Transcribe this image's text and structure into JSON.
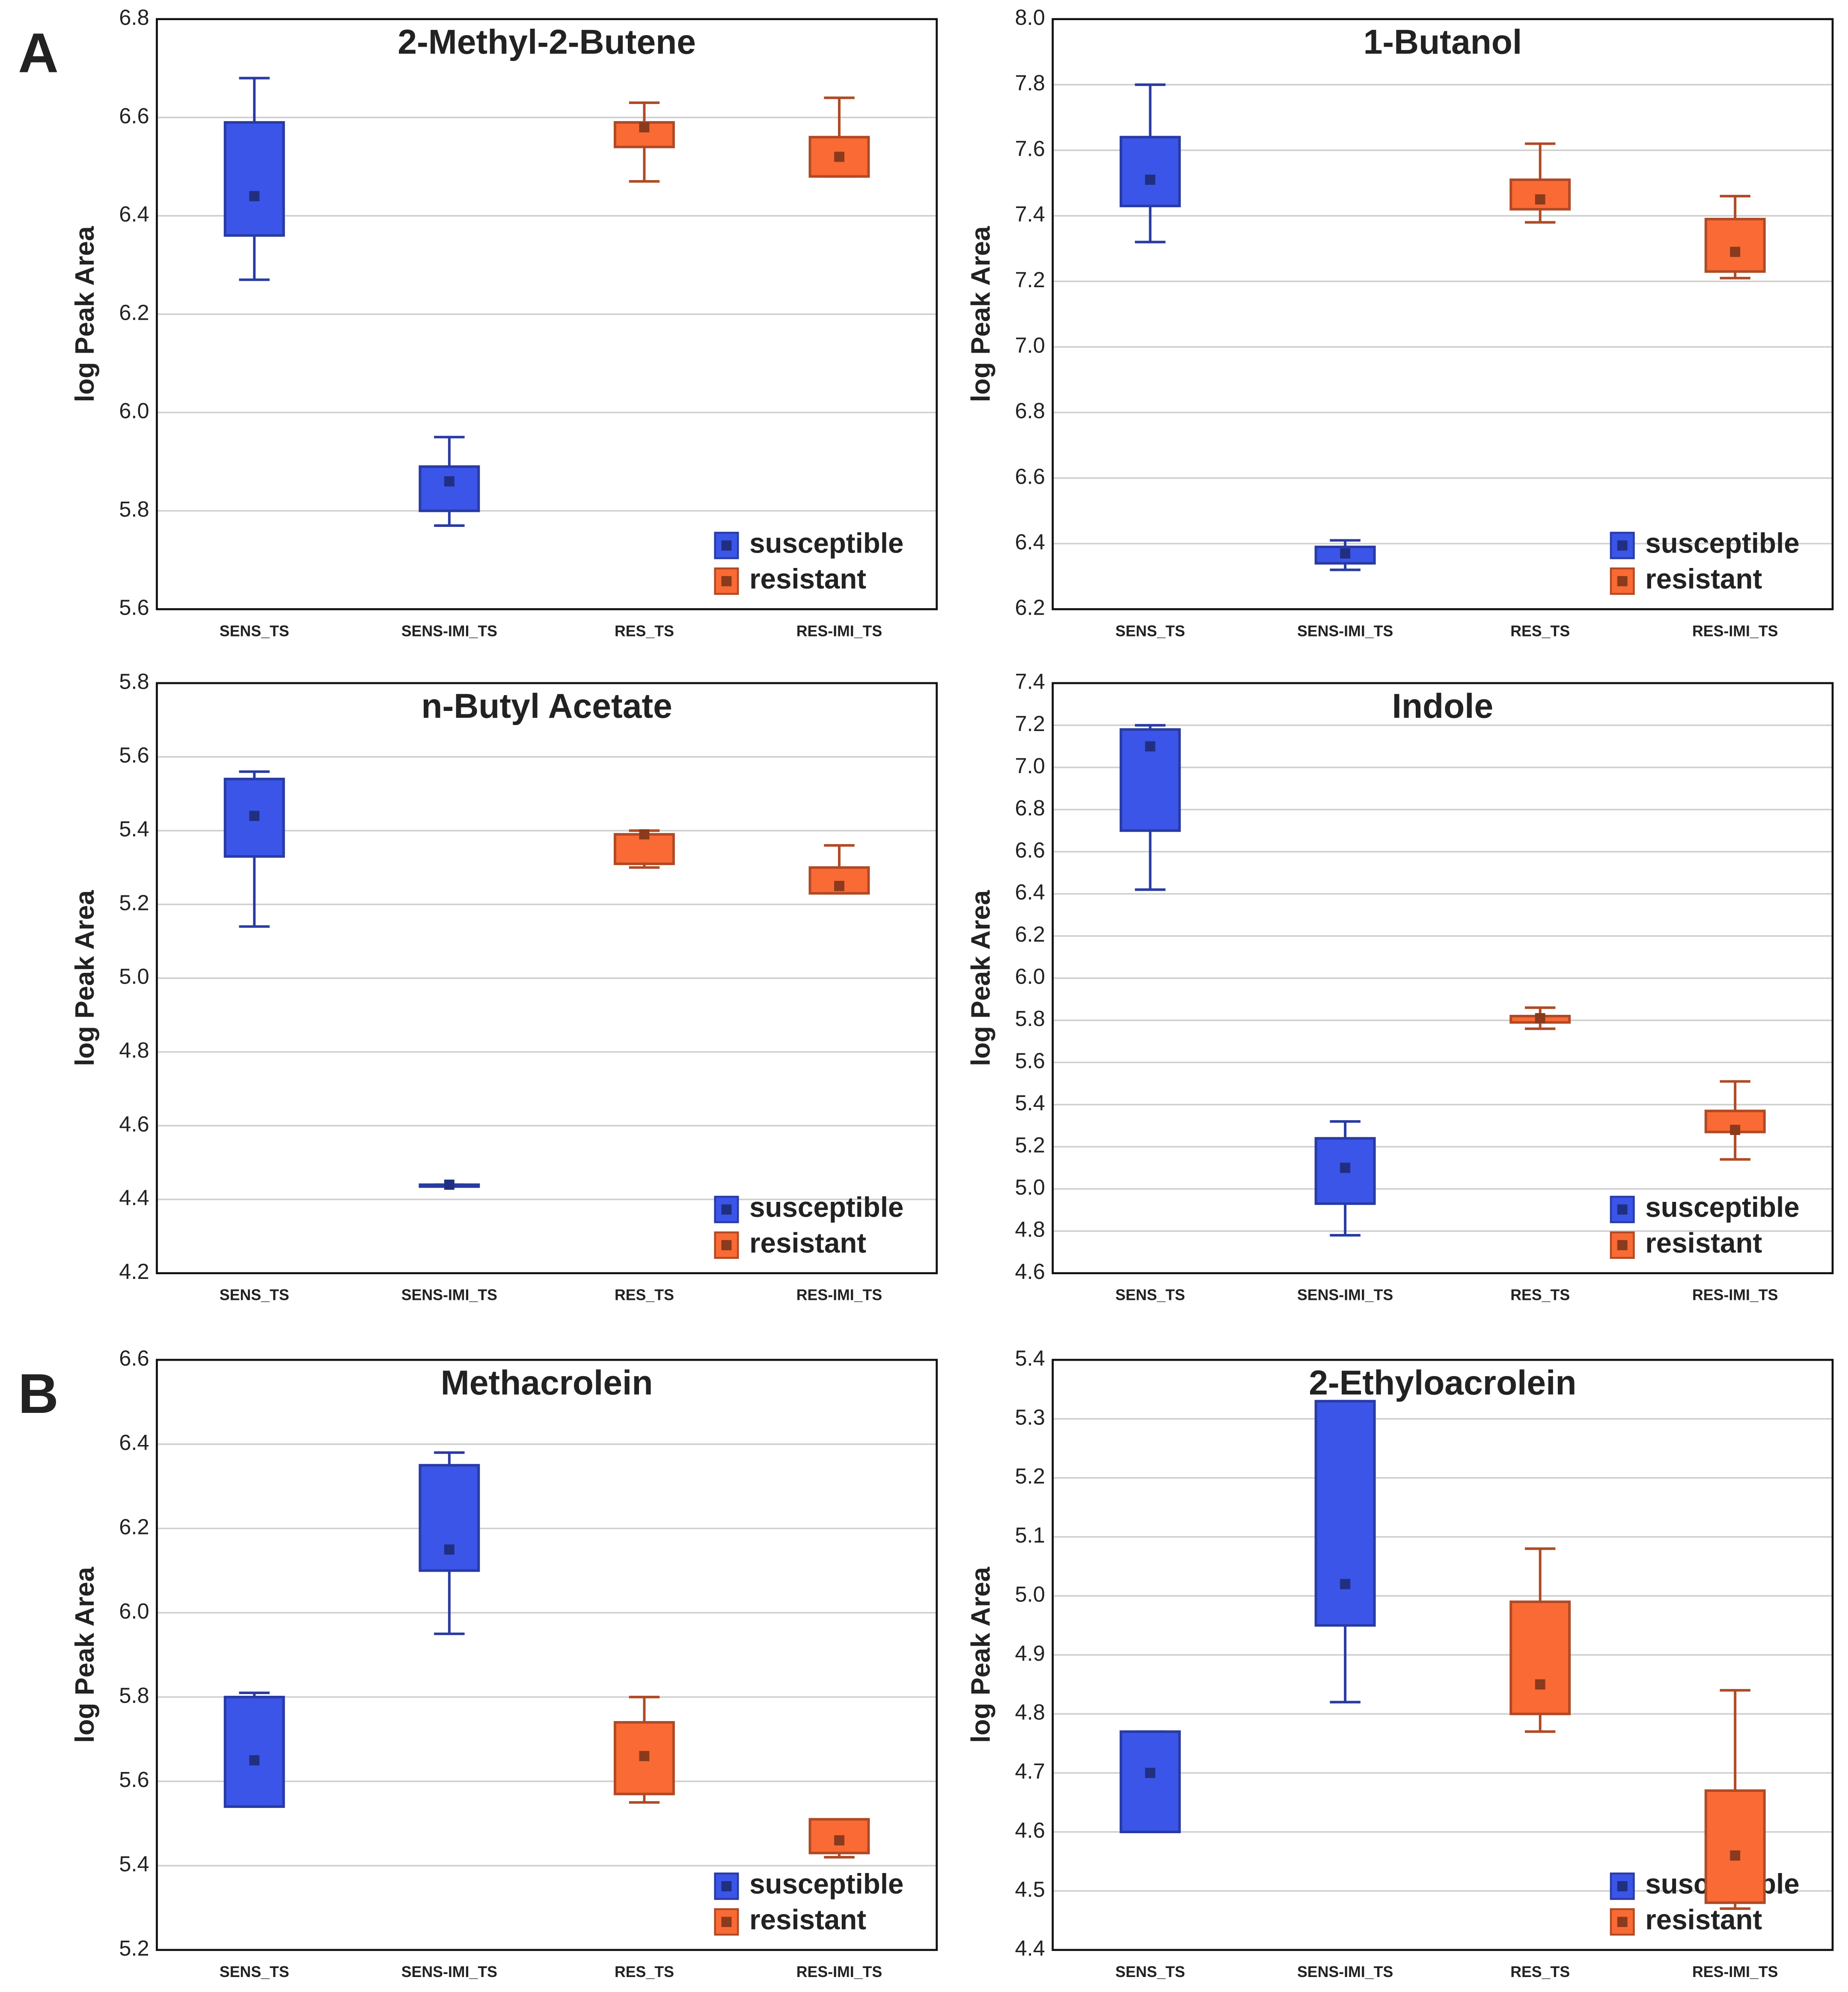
{
  "panel_labels": [
    "A",
    "B"
  ],
  "chart_data": [
    {
      "type": "box",
      "title": "2-Methyl-2-Butene",
      "ylabel": "log Peak Area",
      "categories": [
        "SENS_TS",
        "SENS-IMI_TS",
        "RES_TS",
        "RES-IMI_TS"
      ],
      "series": [
        {
          "name": "susceptible",
          "color": "#3a55e8",
          "min": [
            6.27,
            5.77,
            null,
            null
          ],
          "q1": [
            6.36,
            5.8,
            null,
            null
          ],
          "center": [
            6.44,
            5.86,
            null,
            null
          ],
          "q3": [
            6.59,
            5.89,
            null,
            null
          ],
          "max": [
            6.68,
            5.95,
            null,
            null
          ]
        },
        {
          "name": "resistant",
          "color": "#fa6a35",
          "min": [
            null,
            null,
            6.47,
            6.48
          ],
          "q1": [
            null,
            null,
            6.54,
            6.48
          ],
          "center": [
            null,
            null,
            6.58,
            6.52
          ],
          "q3": [
            null,
            null,
            6.59,
            6.56
          ],
          "max": [
            null,
            null,
            6.63,
            6.64
          ]
        }
      ],
      "ylim": [
        5.6,
        6.8
      ],
      "yticks": [
        5.6,
        5.8,
        {
          "value": 6,
          "label": "6.0"
        },
        6.2,
        6.4,
        6.6,
        6.8
      ],
      "grid": true,
      "legend": "lower right"
    },
    {
      "type": "box",
      "title": "1-Butanol",
      "ylabel": "log Peak Area",
      "categories": [
        "SENS_TS",
        "SENS-IMI_TS",
        "RES_TS",
        "RES-IMI_TS"
      ],
      "series": [
        {
          "name": "susceptible",
          "color": "#3a55e8",
          "min": [
            7.32,
            6.32,
            null,
            null
          ],
          "q1": [
            7.43,
            6.34,
            null,
            null
          ],
          "center": [
            7.51,
            6.37,
            null,
            null
          ],
          "q3": [
            7.64,
            6.39,
            null,
            null
          ],
          "max": [
            7.8,
            6.41,
            null,
            null
          ]
        },
        {
          "name": "resistant",
          "color": "#fa6a35",
          "min": [
            null,
            null,
            7.38,
            7.21
          ],
          "q1": [
            null,
            null,
            7.42,
            7.23
          ],
          "center": [
            null,
            null,
            7.45,
            7.29
          ],
          "q3": [
            null,
            null,
            7.51,
            7.39
          ],
          "max": [
            null,
            null,
            7.62,
            7.46
          ]
        }
      ],
      "ylim": [
        6.2,
        8.0
      ],
      "yticks": [
        6.2,
        6.4,
        6.6,
        6.8,
        {
          "value": 7,
          "label": "7.0"
        },
        7.2,
        7.4,
        7.6,
        7.8,
        {
          "value": 8,
          "label": "8.0"
        }
      ],
      "grid": true,
      "legend": "lower right"
    },
    {
      "type": "box",
      "title": "n-Butyl Acetate",
      "ylabel": "log Peak Area",
      "categories": [
        "SENS_TS",
        "SENS-IMI_TS",
        "RES_TS",
        "RES-IMI_TS"
      ],
      "series": [
        {
          "name": "susceptible",
          "color": "#3a55e8",
          "min": [
            5.14,
            4.44,
            null,
            null
          ],
          "q1": [
            5.33,
            4.44,
            null,
            null
          ],
          "center": [
            5.44,
            4.44,
            null,
            null
          ],
          "q3": [
            5.54,
            4.44,
            null,
            null
          ],
          "max": [
            5.56,
            4.44,
            null,
            null
          ]
        },
        {
          "name": "resistant",
          "color": "#fa6a35",
          "min": [
            null,
            null,
            5.3,
            5.23
          ],
          "q1": [
            null,
            null,
            5.31,
            5.23
          ],
          "center": [
            null,
            null,
            5.39,
            5.25
          ],
          "q3": [
            null,
            null,
            5.39,
            5.3
          ],
          "max": [
            null,
            null,
            5.4,
            5.36
          ]
        }
      ],
      "ylim": [
        4.2,
        5.8
      ],
      "yticks": [
        4.2,
        4.4,
        4.6,
        4.8,
        {
          "value": 5,
          "label": "5.0"
        },
        5.2,
        5.4,
        5.6,
        5.8
      ],
      "grid": true,
      "legend": "lower right"
    },
    {
      "type": "box",
      "title": "Indole",
      "ylabel": "log Peak Area",
      "categories": [
        "SENS_TS",
        "SENS-IMI_TS",
        "RES_TS",
        "RES-IMI_TS"
      ],
      "series": [
        {
          "name": "susceptible",
          "color": "#3a55e8",
          "min": [
            6.42,
            4.78,
            null,
            null
          ],
          "q1": [
            6.7,
            4.93,
            null,
            null
          ],
          "center": [
            7.1,
            5.1,
            null,
            null
          ],
          "q3": [
            7.18,
            5.24,
            null,
            null
          ],
          "max": [
            7.2,
            5.32,
            null,
            null
          ]
        },
        {
          "name": "resistant",
          "color": "#fa6a35",
          "min": [
            null,
            null,
            5.76,
            5.14
          ],
          "q1": [
            null,
            null,
            5.79,
            5.27
          ],
          "center": [
            null,
            null,
            5.81,
            5.28
          ],
          "q3": [
            null,
            null,
            5.82,
            5.37
          ],
          "max": [
            null,
            null,
            5.86,
            5.51
          ]
        }
      ],
      "ylim": [
        4.6,
        7.4
      ],
      "yticks": [
        4.6,
        4.8,
        {
          "value": 5,
          "label": "5.0"
        },
        5.2,
        5.4,
        5.6,
        5.8,
        {
          "value": 6,
          "label": "6.0"
        },
        6.2,
        6.4,
        6.6,
        6.8,
        {
          "value": 7,
          "label": "7.0"
        },
        7.2,
        7.4
      ],
      "grid": true,
      "legend": "lower right"
    },
    {
      "type": "box",
      "title": "Methacrolein",
      "ylabel": "log Peak Area",
      "categories": [
        "SENS_TS",
        "SENS-IMI_TS",
        "RES_TS",
        "RES-IMI_TS"
      ],
      "series": [
        {
          "name": "susceptible",
          "color": "#3a55e8",
          "min": [
            5.54,
            5.95,
            null,
            null
          ],
          "q1": [
            5.54,
            6.1,
            null,
            null
          ],
          "center": [
            5.65,
            6.15,
            null,
            null
          ],
          "q3": [
            5.8,
            6.35,
            null,
            null
          ],
          "max": [
            5.81,
            6.38,
            null,
            null
          ]
        },
        {
          "name": "resistant",
          "color": "#fa6a35",
          "min": [
            null,
            null,
            5.55,
            5.42
          ],
          "q1": [
            null,
            null,
            5.57,
            5.43
          ],
          "center": [
            null,
            null,
            5.66,
            5.46
          ],
          "q3": [
            null,
            null,
            5.74,
            5.51
          ],
          "max": [
            null,
            null,
            5.8,
            5.51
          ]
        }
      ],
      "ylim": [
        5.2,
        6.6
      ],
      "yticks": [
        5.2,
        5.4,
        5.6,
        5.8,
        {
          "value": 6,
          "label": "6.0"
        },
        6.2,
        6.4,
        6.6
      ],
      "grid": true,
      "legend": "lower right"
    },
    {
      "type": "box",
      "title": "2-Ethyloacrolein",
      "ylabel": "log Peak Area",
      "categories": [
        "SENS_TS",
        "SENS-IMI_TS",
        "RES_TS",
        "RES-IMI_TS"
      ],
      "series": [
        {
          "name": "susceptible",
          "color": "#3a55e8",
          "min": [
            4.6,
            4.82,
            null,
            null
          ],
          "q1": [
            4.6,
            4.95,
            null,
            null
          ],
          "center": [
            4.7,
            5.02,
            null,
            null
          ],
          "q3": [
            4.77,
            5.33,
            null,
            null
          ],
          "max": [
            4.77,
            5.33,
            null,
            null
          ]
        },
        {
          "name": "resistant",
          "color": "#fa6a35",
          "min": [
            null,
            null,
            4.77,
            4.47
          ],
          "q1": [
            null,
            null,
            4.8,
            4.48
          ],
          "center": [
            null,
            null,
            4.85,
            4.56
          ],
          "q3": [
            null,
            null,
            4.99,
            4.67
          ],
          "max": [
            null,
            null,
            5.08,
            4.84
          ]
        }
      ],
      "ylim": [
        4.4,
        5.4
      ],
      "yticks": [
        4.4,
        4.5,
        4.6,
        4.7,
        4.8,
        4.9,
        {
          "value": 5,
          "label": "5.0"
        },
        5.1,
        5.2,
        5.3,
        5.4
      ],
      "grid": true,
      "legend": "lower right"
    }
  ]
}
